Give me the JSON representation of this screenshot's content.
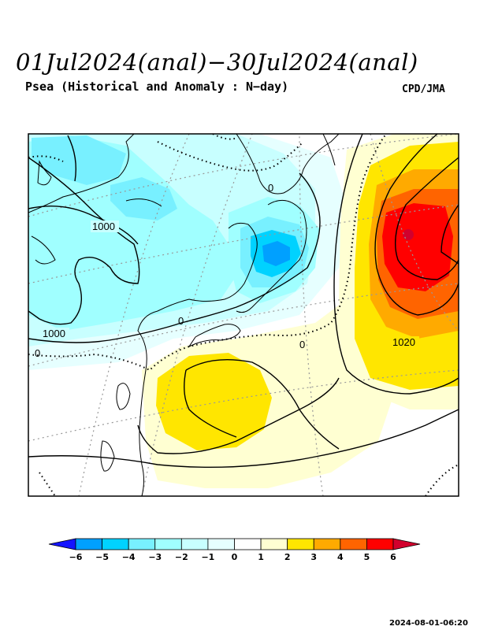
{
  "title": "01Jul2024(anal)−30Jul2024(anal)",
  "subtitle": "Psea (Historical and Anomaly : N−day)",
  "credit": "CPD/JMA",
  "timestamp": "2024-08-01-06:20",
  "contour_labels": [
    "1000",
    "1000",
    "1020",
    "0",
    "0",
    "0",
    "0"
  ],
  "colorbar": {
    "ticks": [
      "−6",
      "−5",
      "−4",
      "−3",
      "−2",
      "−1",
      "0",
      "1",
      "2",
      "3",
      "4",
      "5",
      "6"
    ],
    "colors": [
      "#1414ff",
      "#00a0ff",
      "#00d2ff",
      "#78f0ff",
      "#a0ffff",
      "#c8ffff",
      "#e6ffff",
      "#ffffff",
      "#ffffd2",
      "#ffe600",
      "#ffaa00",
      "#ff6400",
      "#ff0000",
      "#d2002d"
    ]
  }
}
